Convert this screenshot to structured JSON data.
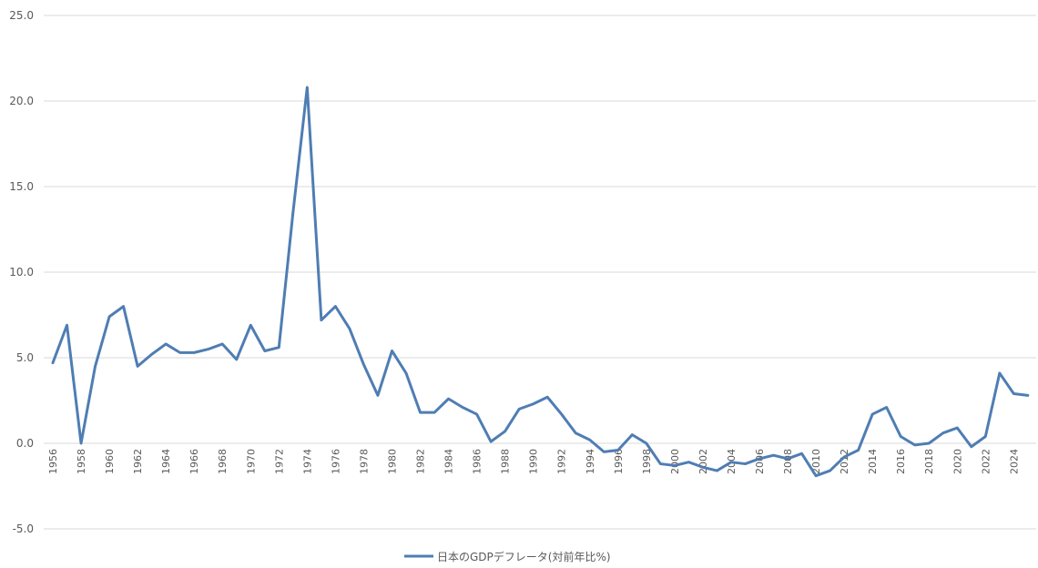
{
  "chart_data": {
    "type": "line",
    "title": "",
    "xlabel": "",
    "ylabel": "",
    "ylim": [
      -5,
      25
    ],
    "yticks": [
      "25.0",
      "20.0",
      "15.0",
      "10.0",
      "5.0",
      "0.0",
      "-5.0"
    ],
    "ytick_values": [
      25,
      20,
      15,
      10,
      5,
      0,
      -5
    ],
    "grid": "horizontal",
    "legend_position": "bottom",
    "x": [
      1956,
      1957,
      1958,
      1959,
      1960,
      1961,
      1962,
      1963,
      1964,
      1965,
      1966,
      1967,
      1968,
      1969,
      1970,
      1971,
      1972,
      1973,
      1974,
      1975,
      1976,
      1977,
      1978,
      1979,
      1980,
      1981,
      1982,
      1983,
      1984,
      1985,
      1986,
      1987,
      1988,
      1989,
      1990,
      1991,
      1992,
      1993,
      1994,
      1995,
      1996,
      1997,
      1998,
      1999,
      2000,
      2001,
      2002,
      2003,
      2004,
      2005,
      2006,
      2007,
      2008,
      2009,
      2010,
      2011,
      2012,
      2013,
      2014,
      2015,
      2016,
      2017,
      2018,
      2019,
      2020,
      2021,
      2022,
      2023,
      2024,
      2025
    ],
    "x_tick_labels": [
      "1956",
      "1958",
      "1960",
      "1962",
      "1964",
      "1966",
      "1968",
      "1970",
      "1972",
      "1974",
      "1976",
      "1978",
      "1980",
      "1982",
      "1984",
      "1986",
      "1988",
      "1990",
      "1992",
      "1994",
      "1996",
      "1998",
      "2000",
      "2002",
      "2004",
      "2006",
      "2008",
      "2010",
      "2012",
      "2014",
      "2016",
      "2018",
      "2020",
      "2022",
      "2024"
    ],
    "x_tick_values": [
      1956,
      1958,
      1960,
      1962,
      1964,
      1966,
      1968,
      1970,
      1972,
      1974,
      1976,
      1978,
      1980,
      1982,
      1984,
      1986,
      1988,
      1990,
      1992,
      1994,
      1996,
      1998,
      2000,
      2002,
      2004,
      2006,
      2008,
      2010,
      2012,
      2014,
      2016,
      2018,
      2020,
      2022,
      2024
    ],
    "series": [
      {
        "name": "日本のGDPデフレータ(対前年比%)",
        "color": "#4f7db3",
        "values": [
          4.7,
          6.9,
          0.0,
          4.5,
          7.4,
          8.0,
          4.5,
          5.2,
          5.8,
          5.3,
          5.3,
          5.5,
          5.8,
          4.9,
          6.9,
          5.4,
          5.6,
          13.5,
          20.8,
          7.2,
          8.0,
          6.7,
          4.6,
          2.8,
          5.4,
          4.1,
          1.8,
          1.8,
          2.6,
          2.1,
          1.7,
          0.1,
          0.7,
          2.0,
          2.3,
          2.7,
          1.7,
          0.6,
          0.2,
          -0.5,
          -0.4,
          0.5,
          0.0,
          -1.2,
          -1.3,
          -1.1,
          -1.4,
          -1.6,
          -1.1,
          -1.2,
          -0.9,
          -0.7,
          -0.9,
          -0.6,
          -1.9,
          -1.6,
          -0.8,
          -0.4,
          1.7,
          2.1,
          0.4,
          -0.1,
          0.0,
          0.6,
          0.9,
          -0.2,
          0.4,
          4.1,
          2.9,
          2.8
        ]
      }
    ]
  }
}
